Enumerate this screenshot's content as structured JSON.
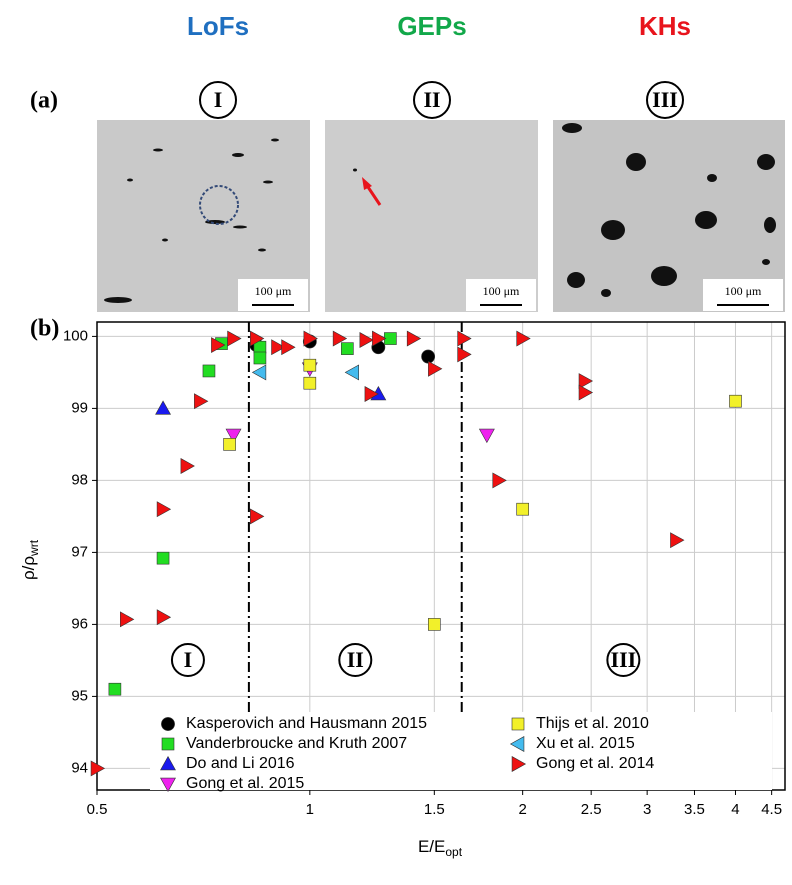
{
  "figure": {
    "class_labels": [
      "LoFs",
      "GEPs",
      "KHs"
    ],
    "class_colors": [
      "#1f6fc0",
      "#12a84a",
      "#e8141c"
    ],
    "panel_a": "(a)",
    "panel_b": "(b)",
    "regions": [
      "I",
      "II",
      "III"
    ],
    "scale_bar": "100 μm"
  },
  "chart_data": {
    "type": "scatter",
    "xlabel": "E/E",
    "xlabel_sub": "opt",
    "ylabel": "ρ/ρ",
    "ylabel_sub": "wrt",
    "xscale": "log",
    "xlim": [
      0.5,
      4.7
    ],
    "ylim": [
      93.7,
      100.2
    ],
    "xticks": [
      0.5,
      1,
      1.5,
      2,
      2.5,
      3,
      3.5,
      4,
      4.5
    ],
    "yticks": [
      94,
      95,
      96,
      97,
      98,
      99,
      100
    ],
    "grid": true,
    "boundaries": [
      0.82,
      1.64
    ],
    "region_labels": [
      "I",
      "II",
      "III"
    ],
    "series": [
      {
        "name": "Kasperovich and Hausmann 2015",
        "color": "#000000",
        "marker": "circle",
        "x": [
          0.84,
          1.0,
          1.25,
          1.47
        ],
        "values": [
          99.88,
          99.93,
          99.85,
          99.72
        ]
      },
      {
        "name": "Vanderbroucke and Kruth 2007",
        "color": "#22dd22",
        "marker": "square",
        "x": [
          0.53,
          0.62,
          0.72,
          0.75,
          0.85,
          1.13,
          1.3,
          0.85
        ],
        "values": [
          95.1,
          96.92,
          99.52,
          99.9,
          99.85,
          99.83,
          99.97,
          99.7
        ]
      },
      {
        "name": "Do and Li 2016",
        "color": "#1a1aee",
        "marker": "triangle-up",
        "x": [
          0.62,
          1.25
        ],
        "values": [
          99.0,
          99.2
        ]
      },
      {
        "name": "Gong et al. 2015",
        "color": "#ee22ee",
        "marker": "triangle-down",
        "x": [
          0.78,
          1.0,
          1.78
        ],
        "values": [
          98.63,
          99.55,
          98.63
        ]
      },
      {
        "name": "Thijs et al. 2010",
        "color": "#f2f02a",
        "marker": "square",
        "x": [
          0.77,
          1.0,
          1.0,
          1.5,
          2.0,
          4.0
        ],
        "values": [
          98.5,
          99.6,
          99.35,
          96.0,
          97.6,
          99.1
        ]
      },
      {
        "name": "Xu et al. 2015",
        "color": "#44bbee",
        "marker": "triangle-left",
        "x": [
          0.85,
          1.15
        ],
        "values": [
          99.5,
          99.5
        ]
      },
      {
        "name": "Gong et al. 2014",
        "color": "#ee1111",
        "marker": "triangle-right",
        "x": [
          0.5,
          0.55,
          0.62,
          0.62,
          0.67,
          0.7,
          0.74,
          0.78,
          0.84,
          0.84,
          0.9,
          0.93,
          1.0,
          1.1,
          1.2,
          1.22,
          1.25,
          1.4,
          1.5,
          1.65,
          1.65,
          1.85,
          2.0,
          2.45,
          2.45,
          3.3
        ],
        "values": [
          94.0,
          96.07,
          96.1,
          97.6,
          98.2,
          99.1,
          99.88,
          99.97,
          99.97,
          97.5,
          99.85,
          99.85,
          99.97,
          99.97,
          99.95,
          99.2,
          99.97,
          99.97,
          99.55,
          99.97,
          99.75,
          98.0,
          99.97,
          99.38,
          99.22,
          97.17
        ]
      }
    ]
  }
}
